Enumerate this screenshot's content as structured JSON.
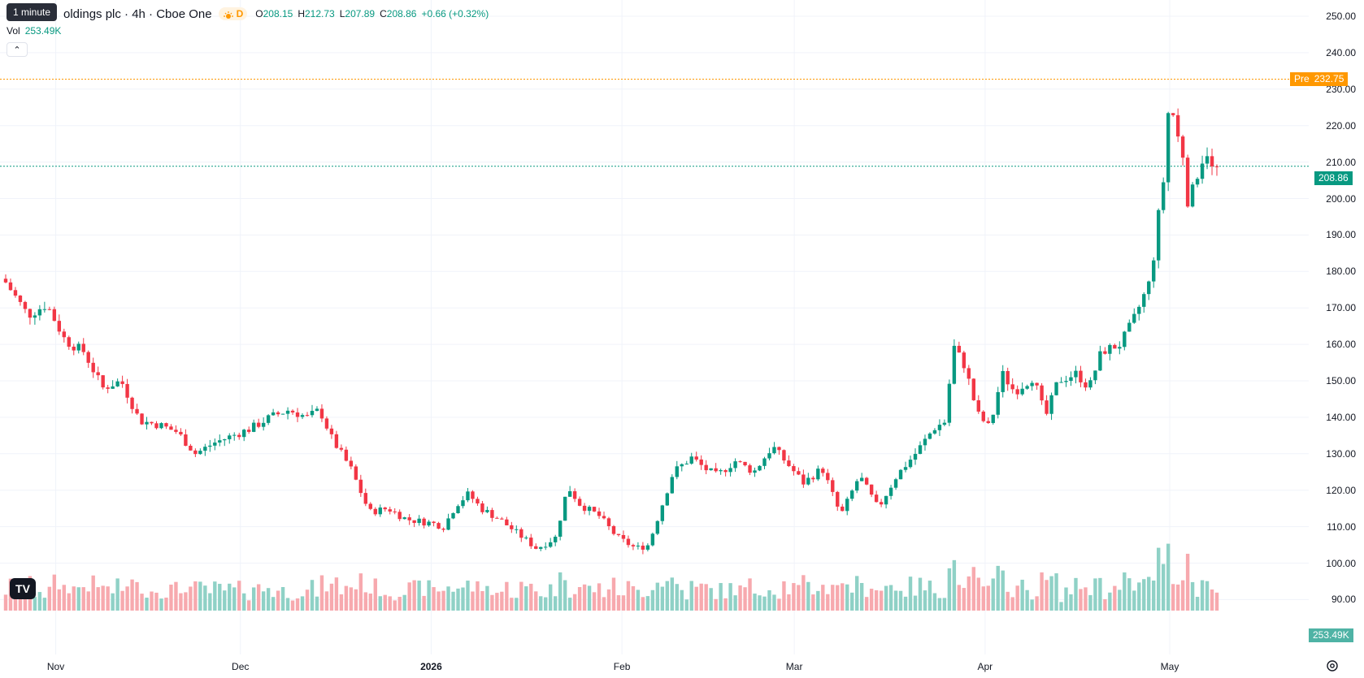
{
  "tooltip": "1 minute",
  "legend": {
    "title": "oldings plc · 4h · Cboe One",
    "badge": "D",
    "open_label": "O",
    "open": "208.15",
    "high_label": "H",
    "high": "212.73",
    "low_label": "L",
    "low": "207.89",
    "close_label": "C",
    "close": "208.86",
    "change": "+0.66 (+0.32%)",
    "vol_label": "Vol",
    "vol_value": "253.49K"
  },
  "labels": {
    "pre_tag": "Pre",
    "pre_price": "232.75",
    "last_price": "208.86",
    "volume": "253.49K"
  },
  "colors": {
    "up": "#089981",
    "down": "#f23645",
    "vol_up": "#8fd1c6",
    "vol_down": "#f7a9ae",
    "pre": "#ff9800",
    "grid": "#f0f3fa"
  },
  "icons": {
    "logo": "tradingview-logo-icon",
    "settings": "gear-icon",
    "collapse": "chevron-up-icon"
  },
  "chart_data": {
    "type": "candlestick",
    "title": "oldings plc · 4h · Cboe One",
    "price_ticks": [
      250,
      240,
      230,
      220,
      210,
      200,
      190,
      180,
      170,
      160,
      150,
      140,
      130,
      120,
      110,
      100,
      90
    ],
    "price_tick_labels": [
      "250.00",
      "240.00",
      "230.00",
      "220.00",
      "210.00",
      "200.00",
      "190.00",
      "180.00",
      "170.00",
      "160.00",
      "150.00",
      "140.00",
      "130.00",
      "120.00",
      "110.00",
      "100.00",
      "90.00"
    ],
    "ylim": [
      88,
      252
    ],
    "time_ticks": [
      "Nov",
      "Dec",
      "2026",
      "Feb",
      "Mar",
      "Apr",
      "May"
    ],
    "time_tick_dates": [
      "2025-11-01",
      "2025-12-01",
      "2026-01-01",
      "2026-02-01",
      "2026-03-01",
      "2026-04-01",
      "2026-05-01"
    ],
    "xlim": [
      "2025-10-24",
      "2026-05-08"
    ],
    "pre_market_price": 232.75,
    "last_price": 208.86,
    "close_points": [
      [
        "2025-10-24",
        178
      ],
      [
        "2025-10-28",
        168
      ],
      [
        "2025-10-31",
        171
      ],
      [
        "2025-11-03",
        161
      ],
      [
        "2025-11-06",
        158
      ],
      [
        "2025-11-09",
        148
      ],
      [
        "2025-11-12",
        150
      ],
      [
        "2025-11-15",
        139
      ],
      [
        "2025-11-18",
        138
      ],
      [
        "2025-11-21",
        136
      ],
      [
        "2025-11-24",
        130
      ],
      [
        "2025-11-27",
        133
      ],
      [
        "2025-11-30",
        135
      ],
      [
        "2025-12-03",
        137
      ],
      [
        "2025-12-06",
        140
      ],
      [
        "2025-12-09",
        142
      ],
      [
        "2025-12-12",
        140
      ],
      [
        "2025-12-14",
        142
      ],
      [
        "2025-12-16",
        134
      ],
      [
        "2025-12-19",
        126
      ],
      [
        "2025-12-22",
        114
      ],
      [
        "2025-12-25",
        115
      ],
      [
        "2025-12-28",
        112
      ],
      [
        "2026-01-01",
        111
      ],
      [
        "2026-01-03",
        110
      ],
      [
        "2026-01-05",
        116
      ],
      [
        "2026-01-07",
        119
      ],
      [
        "2026-01-09",
        115
      ],
      [
        "2026-01-12",
        112
      ],
      [
        "2026-01-15",
        108
      ],
      [
        "2026-01-18",
        104
      ],
      [
        "2026-01-21",
        107
      ],
      [
        "2026-01-23",
        121
      ],
      [
        "2026-01-25",
        116
      ],
      [
        "2026-01-28",
        113
      ],
      [
        "2026-01-31",
        107
      ],
      [
        "2026-02-03",
        104
      ],
      [
        "2026-02-05",
        105
      ],
      [
        "2026-02-07",
        115
      ],
      [
        "2026-02-09",
        125
      ],
      [
        "2026-02-12",
        129
      ],
      [
        "2026-02-14",
        126
      ],
      [
        "2026-02-16",
        124
      ],
      [
        "2026-02-19",
        128
      ],
      [
        "2026-02-22",
        125
      ],
      [
        "2026-02-25",
        132
      ],
      [
        "2026-02-27",
        128
      ],
      [
        "2026-03-02",
        122
      ],
      [
        "2026-03-05",
        126
      ],
      [
        "2026-03-08",
        113
      ],
      [
        "2026-03-11",
        124
      ],
      [
        "2026-03-14",
        115
      ],
      [
        "2026-03-17",
        124
      ],
      [
        "2026-03-20",
        130
      ],
      [
        "2026-03-23",
        137
      ],
      [
        "2026-03-25",
        139
      ],
      [
        "2026-03-26",
        160
      ],
      [
        "2026-03-28",
        154
      ],
      [
        "2026-03-30",
        141
      ],
      [
        "2026-04-01",
        137
      ],
      [
        "2026-04-03",
        152
      ],
      [
        "2026-04-05",
        147
      ],
      [
        "2026-04-08",
        151
      ],
      [
        "2026-04-10",
        140
      ],
      [
        "2026-04-12",
        150
      ],
      [
        "2026-04-15",
        152
      ],
      [
        "2026-04-17",
        148
      ],
      [
        "2026-04-19",
        158
      ],
      [
        "2026-04-22",
        160
      ],
      [
        "2026-04-24",
        166
      ],
      [
        "2026-04-26",
        174
      ],
      [
        "2026-04-27",
        178
      ],
      [
        "2026-04-28",
        193
      ],
      [
        "2026-04-29",
        205
      ],
      [
        "2026-04-30",
        229
      ],
      [
        "2026-05-01",
        218
      ],
      [
        "2026-05-02",
        214
      ],
      [
        "2026-05-03",
        198
      ],
      [
        "2026-05-04",
        204
      ],
      [
        "2026-05-05",
        210
      ],
      [
        "2026-05-06",
        213
      ],
      [
        "2026-05-07",
        207
      ],
      [
        "2026-05-08",
        208.86
      ]
    ],
    "volume_label": "Vol",
    "last_volume": "253.49K"
  }
}
